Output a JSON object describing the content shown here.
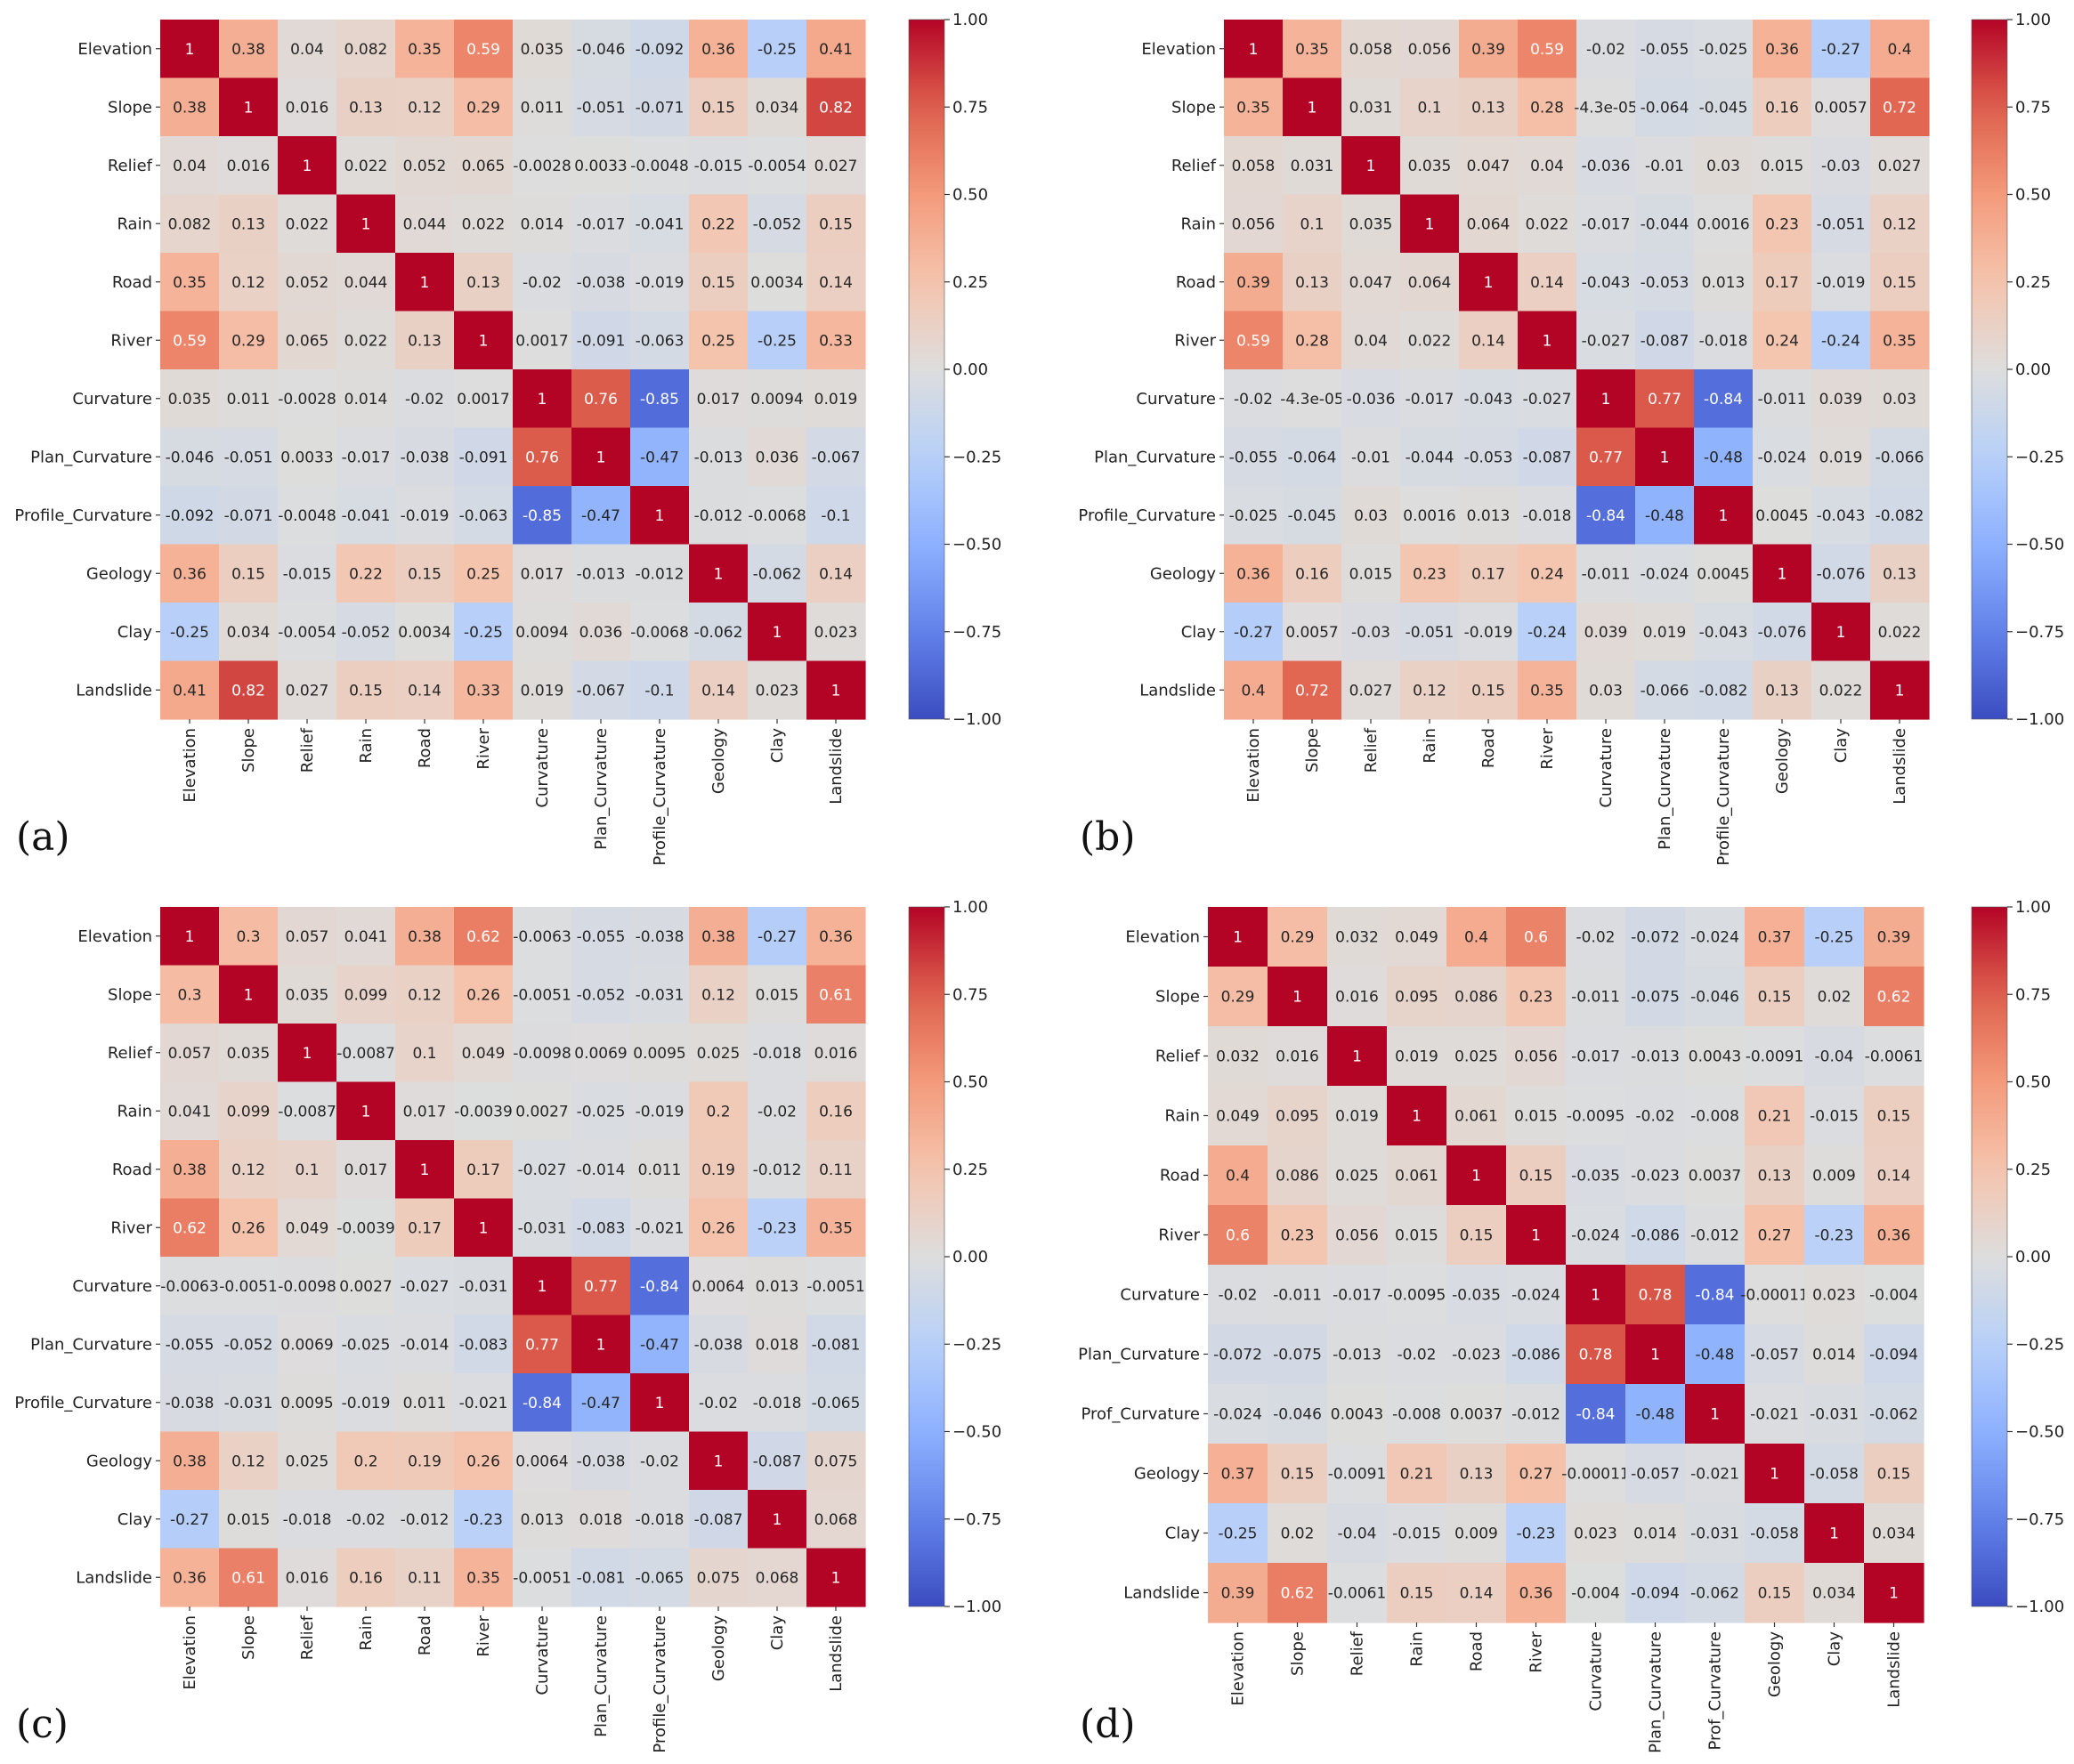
{
  "figure": {
    "panel_labels": [
      "(a)",
      "(b)",
      "(c)",
      "(d)"
    ]
  },
  "chart_data": [
    {
      "type": "heatmap",
      "panel": "(a)",
      "colormap": "coolwarm",
      "vmin": -1.0,
      "vmax": 1.0,
      "colorbar_ticks": [
        "1.00",
        "0.75",
        "0.50",
        "0.25",
        "0.00",
        "−0.25",
        "−0.50",
        "−0.75",
        "−1.00"
      ],
      "colorbar_tick_values": [
        1.0,
        0.75,
        0.5,
        0.25,
        0.0,
        -0.25,
        -0.5,
        -0.75,
        -1.0
      ],
      "variables": [
        "Elevation",
        "Slope",
        "Relief",
        "Rain",
        "Road",
        "River",
        "Curvature",
        "Plan_Curvature",
        "Profile_Curvature",
        "Geology",
        "Clay",
        "Landslide"
      ],
      "annotations": [
        [
          "1",
          "0.38",
          "0.04",
          "0.082",
          "0.35",
          "0.59",
          "0.035",
          "-0.046",
          "-0.092",
          "0.36",
          "-0.25",
          "0.41"
        ],
        [
          "0.38",
          "1",
          "0.016",
          "0.13",
          "0.12",
          "0.29",
          "0.011",
          "-0.051",
          "-0.071",
          "0.15",
          "0.034",
          "0.82"
        ],
        [
          "0.04",
          "0.016",
          "1",
          "0.022",
          "0.052",
          "0.065",
          "-0.0028",
          "0.0033",
          "-0.0048",
          "-0.015",
          "-0.0054",
          "0.027"
        ],
        [
          "0.082",
          "0.13",
          "0.022",
          "1",
          "0.044",
          "0.022",
          "0.014",
          "-0.017",
          "-0.041",
          "0.22",
          "-0.052",
          "0.15"
        ],
        [
          "0.35",
          "0.12",
          "0.052",
          "0.044",
          "1",
          "0.13",
          "-0.02",
          "-0.038",
          "-0.019",
          "0.15",
          "0.0034",
          "0.14"
        ],
        [
          "0.59",
          "0.29",
          "0.065",
          "0.022",
          "0.13",
          "1",
          "0.0017",
          "-0.091",
          "-0.063",
          "0.25",
          "-0.25",
          "0.33"
        ],
        [
          "0.035",
          "0.011",
          "-0.0028",
          "0.014",
          "-0.02",
          "0.0017",
          "1",
          "0.76",
          "-0.85",
          "0.017",
          "0.0094",
          "0.019"
        ],
        [
          "-0.046",
          "-0.051",
          "0.0033",
          "-0.017",
          "-0.038",
          "-0.091",
          "0.76",
          "1",
          "-0.47",
          "-0.013",
          "0.036",
          "-0.067"
        ],
        [
          "-0.092",
          "-0.071",
          "-0.0048",
          "-0.041",
          "-0.019",
          "-0.063",
          "-0.85",
          "-0.47",
          "1",
          "-0.012",
          "-0.0068",
          "-0.1"
        ],
        [
          "0.36",
          "0.15",
          "-0.015",
          "0.22",
          "0.15",
          "0.25",
          "0.017",
          "-0.013",
          "-0.012",
          "1",
          "-0.062",
          "0.14"
        ],
        [
          "-0.25",
          "0.034",
          "-0.0054",
          "-0.052",
          "0.0034",
          "-0.25",
          "0.0094",
          "0.036",
          "-0.0068",
          "-0.062",
          "1",
          "0.023"
        ],
        [
          "0.41",
          "0.82",
          "0.027",
          "0.15",
          "0.14",
          "0.33",
          "0.019",
          "-0.067",
          "-0.1",
          "0.14",
          "0.023",
          "1"
        ]
      ]
    },
    {
      "type": "heatmap",
      "panel": "(b)",
      "colormap": "coolwarm",
      "vmin": -1.0,
      "vmax": 1.0,
      "colorbar_ticks": [
        "1.00",
        "0.75",
        "0.50",
        "0.25",
        "0.00",
        "−0.25",
        "−0.50",
        "−0.75",
        "−1.00"
      ],
      "colorbar_tick_values": [
        1.0,
        0.75,
        0.5,
        0.25,
        0.0,
        -0.25,
        -0.5,
        -0.75,
        -1.0
      ],
      "variables": [
        "Elevation",
        "Slope",
        "Relief",
        "Rain",
        "Road",
        "River",
        "Curvature",
        "Plan_Curvature",
        "Profile_Curvature",
        "Geology",
        "Clay",
        "Landslide"
      ],
      "annotations": [
        [
          "1",
          "0.35",
          "0.058",
          "0.056",
          "0.39",
          "0.59",
          "-0.02",
          "-0.055",
          "-0.025",
          "0.36",
          "-0.27",
          "0.4"
        ],
        [
          "0.35",
          "1",
          "0.031",
          "0.1",
          "0.13",
          "0.28",
          "-4.3e-05",
          "-0.064",
          "-0.045",
          "0.16",
          "0.0057",
          "0.72"
        ],
        [
          "0.058",
          "0.031",
          "1",
          "0.035",
          "0.047",
          "0.04",
          "-0.036",
          "-0.01",
          "0.03",
          "0.015",
          "-0.03",
          "0.027"
        ],
        [
          "0.056",
          "0.1",
          "0.035",
          "1",
          "0.064",
          "0.022",
          "-0.017",
          "-0.044",
          "0.0016",
          "0.23",
          "-0.051",
          "0.12"
        ],
        [
          "0.39",
          "0.13",
          "0.047",
          "0.064",
          "1",
          "0.14",
          "-0.043",
          "-0.053",
          "0.013",
          "0.17",
          "-0.019",
          "0.15"
        ],
        [
          "0.59",
          "0.28",
          "0.04",
          "0.022",
          "0.14",
          "1",
          "-0.027",
          "-0.087",
          "-0.018",
          "0.24",
          "-0.24",
          "0.35"
        ],
        [
          "-0.02",
          "-4.3e-05",
          "-0.036",
          "-0.017",
          "-0.043",
          "-0.027",
          "1",
          "0.77",
          "-0.84",
          "-0.011",
          "0.039",
          "0.03"
        ],
        [
          "-0.055",
          "-0.064",
          "-0.01",
          "-0.044",
          "-0.053",
          "-0.087",
          "0.77",
          "1",
          "-0.48",
          "-0.024",
          "0.019",
          "-0.066"
        ],
        [
          "-0.025",
          "-0.045",
          "0.03",
          "0.0016",
          "0.013",
          "-0.018",
          "-0.84",
          "-0.48",
          "1",
          "0.0045",
          "-0.043",
          "-0.082"
        ],
        [
          "0.36",
          "0.16",
          "0.015",
          "0.23",
          "0.17",
          "0.24",
          "-0.011",
          "-0.024",
          "0.0045",
          "1",
          "-0.076",
          "0.13"
        ],
        [
          "-0.27",
          "0.0057",
          "-0.03",
          "-0.051",
          "-0.019",
          "-0.24",
          "0.039",
          "0.019",
          "-0.043",
          "-0.076",
          "1",
          "0.022"
        ],
        [
          "0.4",
          "0.72",
          "0.027",
          "0.12",
          "0.15",
          "0.35",
          "0.03",
          "-0.066",
          "-0.082",
          "0.13",
          "0.022",
          "1"
        ]
      ]
    },
    {
      "type": "heatmap",
      "panel": "(c)",
      "colormap": "coolwarm",
      "vmin": -1.0,
      "vmax": 1.0,
      "colorbar_ticks": [
        "1.00",
        "0.75",
        "0.50",
        "0.25",
        "0.00",
        "−0.25",
        "−0.50",
        "−0.75",
        "−1.00"
      ],
      "colorbar_tick_values": [
        1.0,
        0.75,
        0.5,
        0.25,
        0.0,
        -0.25,
        -0.5,
        -0.75,
        -1.0
      ],
      "variables": [
        "Elevation",
        "Slope",
        "Relief",
        "Rain",
        "Road",
        "River",
        "Curvature",
        "Plan_Curvature",
        "Profile_Curvature",
        "Geology",
        "Clay",
        "Landslide"
      ],
      "annotations": [
        [
          "1",
          "0.3",
          "0.057",
          "0.041",
          "0.38",
          "0.62",
          "-0.0063",
          "-0.055",
          "-0.038",
          "0.38",
          "-0.27",
          "0.36"
        ],
        [
          "0.3",
          "1",
          "0.035",
          "0.099",
          "0.12",
          "0.26",
          "-0.0051",
          "-0.052",
          "-0.031",
          "0.12",
          "0.015",
          "0.61"
        ],
        [
          "0.057",
          "0.035",
          "1",
          "-0.0087",
          "0.1",
          "0.049",
          "-0.0098",
          "0.0069",
          "0.0095",
          "0.025",
          "-0.018",
          "0.016"
        ],
        [
          "0.041",
          "0.099",
          "-0.0087",
          "1",
          "0.017",
          "-0.0039",
          "0.0027",
          "-0.025",
          "-0.019",
          "0.2",
          "-0.02",
          "0.16"
        ],
        [
          "0.38",
          "0.12",
          "0.1",
          "0.017",
          "1",
          "0.17",
          "-0.027",
          "-0.014",
          "0.011",
          "0.19",
          "-0.012",
          "0.11"
        ],
        [
          "0.62",
          "0.26",
          "0.049",
          "-0.0039",
          "0.17",
          "1",
          "-0.031",
          "-0.083",
          "-0.021",
          "0.26",
          "-0.23",
          "0.35"
        ],
        [
          "-0.0063",
          "-0.0051",
          "-0.0098",
          "0.0027",
          "-0.027",
          "-0.031",
          "1",
          "0.77",
          "-0.84",
          "0.0064",
          "0.013",
          "-0.0051"
        ],
        [
          "-0.055",
          "-0.052",
          "0.0069",
          "-0.025",
          "-0.014",
          "-0.083",
          "0.77",
          "1",
          "-0.47",
          "-0.038",
          "0.018",
          "-0.081"
        ],
        [
          "-0.038",
          "-0.031",
          "0.0095",
          "-0.019",
          "0.011",
          "-0.021",
          "-0.84",
          "-0.47",
          "1",
          "-0.02",
          "-0.018",
          "-0.065"
        ],
        [
          "0.38",
          "0.12",
          "0.025",
          "0.2",
          "0.19",
          "0.26",
          "0.0064",
          "-0.038",
          "-0.02",
          "1",
          "-0.087",
          "0.075"
        ],
        [
          "-0.27",
          "0.015",
          "-0.018",
          "-0.02",
          "-0.012",
          "-0.23",
          "0.013",
          "0.018",
          "-0.018",
          "-0.087",
          "1",
          "0.068"
        ],
        [
          "0.36",
          "0.61",
          "0.016",
          "0.16",
          "0.11",
          "0.35",
          "-0.0051",
          "-0.081",
          "-0.065",
          "0.075",
          "0.068",
          "1"
        ]
      ]
    },
    {
      "type": "heatmap",
      "panel": "(d)",
      "colormap": "coolwarm",
      "vmin": -1.0,
      "vmax": 1.0,
      "colorbar_ticks": [
        "1.00",
        "0.75",
        "0.50",
        "0.25",
        "0.00",
        "−0.25",
        "−0.50",
        "−0.75",
        "−1.00"
      ],
      "colorbar_tick_values": [
        1.0,
        0.75,
        0.5,
        0.25,
        0.0,
        -0.25,
        -0.5,
        -0.75,
        -1.0
      ],
      "variables": [
        "Elevation",
        "Slope",
        "Relief",
        "Rain",
        "Road",
        "River",
        "Curvature",
        "Plan_Curvature",
        "Prof_Curvature",
        "Geology",
        "Clay",
        "Landslide"
      ],
      "annotations": [
        [
          "1",
          "0.29",
          "0.032",
          "0.049",
          "0.4",
          "0.6",
          "-0.02",
          "-0.072",
          "-0.024",
          "0.37",
          "-0.25",
          "0.39"
        ],
        [
          "0.29",
          "1",
          "0.016",
          "0.095",
          "0.086",
          "0.23",
          "-0.011",
          "-0.075",
          "-0.046",
          "0.15",
          "0.02",
          "0.62"
        ],
        [
          "0.032",
          "0.016",
          "1",
          "0.019",
          "0.025",
          "0.056",
          "-0.017",
          "-0.013",
          "0.0043",
          "-0.0091",
          "-0.04",
          "-0.0061"
        ],
        [
          "0.049",
          "0.095",
          "0.019",
          "1",
          "0.061",
          "0.015",
          "-0.0095",
          "-0.02",
          "-0.008",
          "0.21",
          "-0.015",
          "0.15"
        ],
        [
          "0.4",
          "0.086",
          "0.025",
          "0.061",
          "1",
          "0.15",
          "-0.035",
          "-0.023",
          "0.0037",
          "0.13",
          "0.009",
          "0.14"
        ],
        [
          "0.6",
          "0.23",
          "0.056",
          "0.015",
          "0.15",
          "1",
          "-0.024",
          "-0.086",
          "-0.012",
          "0.27",
          "-0.23",
          "0.36"
        ],
        [
          "-0.02",
          "-0.011",
          "-0.017",
          "-0.0095",
          "-0.035",
          "-0.024",
          "1",
          "0.78",
          "-0.84",
          "-0.00011",
          "0.023",
          "-0.004"
        ],
        [
          "-0.072",
          "-0.075",
          "-0.013",
          "-0.02",
          "-0.023",
          "-0.086",
          "0.78",
          "1",
          "-0.48",
          "-0.057",
          "0.014",
          "-0.094"
        ],
        [
          "-0.024",
          "-0.046",
          "0.0043",
          "-0.008",
          "0.0037",
          "-0.012",
          "-0.84",
          "-0.48",
          "1",
          "-0.021",
          "-0.031",
          "-0.062"
        ],
        [
          "0.37",
          "0.15",
          "-0.0091",
          "0.21",
          "0.13",
          "0.27",
          "-0.00011",
          "-0.057",
          "-0.021",
          "1",
          "-0.058",
          "0.15"
        ],
        [
          "-0.25",
          "0.02",
          "-0.04",
          "-0.015",
          "0.009",
          "-0.23",
          "0.023",
          "0.014",
          "-0.031",
          "-0.058",
          "1",
          "0.034"
        ],
        [
          "0.39",
          "0.62",
          "-0.0061",
          "0.15",
          "0.14",
          "0.36",
          "-0.004",
          "-0.094",
          "-0.062",
          "0.15",
          "0.034",
          "1"
        ]
      ]
    }
  ]
}
